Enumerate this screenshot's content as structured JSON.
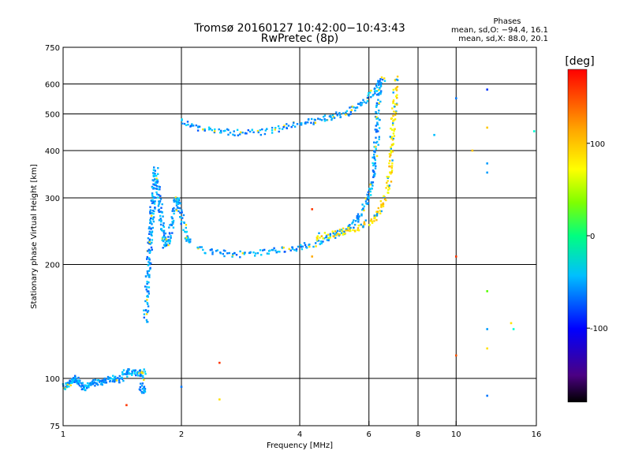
{
  "chart_data": {
    "type": "scatter",
    "title": "Tromsø 20160127 10:42:00−10:43:43",
    "subtitle": "RwPretec (8p)",
    "xlabel": "Frequency [MHz]",
    "ylabel": "Stationary phase Virtual Height [km]",
    "x_scale": "log",
    "y_scale": "log",
    "xlim": [
      1,
      16
    ],
    "ylim": [
      75,
      750
    ],
    "x_ticks": [
      1,
      2,
      4,
      6,
      8,
      10,
      16
    ],
    "x_tick_labels": [
      "1",
      "2",
      "4",
      "6",
      "8",
      "10",
      "16"
    ],
    "y_ticks": [
      75,
      100,
      200,
      300,
      400,
      500,
      600,
      750
    ],
    "y_tick_labels": [
      "75",
      "100",
      "200",
      "300",
      "400",
      "500",
      "600",
      "750"
    ],
    "grid": true,
    "phase_info": {
      "heading": "Phases",
      "line_o": "mean, sd,O: −94.4, 16.1",
      "line_x": "mean, sd,X:  88.0, 20.1"
    },
    "colorbar": {
      "label": "[deg]",
      "range": [
        -180,
        180
      ],
      "ticks": [
        100,
        0,
        -100
      ],
      "tick_labels": [
        "100",
        "0",
        "-100"
      ]
    },
    "traces": [
      {
        "name_hint": "E-trace",
        "points": [
          [
            1.0,
            95
          ],
          [
            1.03,
            96
          ],
          [
            1.06,
            98
          ],
          [
            1.08,
            100
          ],
          [
            1.1,
            97
          ],
          [
            1.13,
            94
          ],
          [
            1.16,
            96
          ],
          [
            1.2,
            97
          ],
          [
            1.25,
            98
          ],
          [
            1.3,
            99
          ],
          [
            1.35,
            100
          ],
          [
            1.4,
            99
          ],
          [
            1.45,
            104
          ],
          [
            1.5,
            104
          ],
          [
            1.55,
            103
          ],
          [
            1.6,
            104
          ],
          [
            1.58,
            93
          ],
          [
            1.64,
            92
          ]
        ],
        "phase": -100
      },
      {
        "name_hint": "F1-cusp",
        "points": [
          [
            1.62,
            140
          ],
          [
            1.63,
            160
          ],
          [
            1.64,
            180
          ],
          [
            1.65,
            200
          ],
          [
            1.66,
            220
          ],
          [
            1.67,
            240
          ],
          [
            1.68,
            260
          ],
          [
            1.69,
            280
          ],
          [
            1.7,
            300
          ],
          [
            1.71,
            330
          ],
          [
            1.72,
            360
          ],
          [
            1.74,
            320
          ],
          [
            1.76,
            290
          ],
          [
            1.78,
            260
          ],
          [
            1.8,
            240
          ],
          [
            1.82,
            225
          ],
          [
            1.86,
            230
          ],
          [
            1.9,
            260
          ],
          [
            1.93,
            290
          ],
          [
            1.96,
            300
          ],
          [
            2.0,
            270
          ],
          [
            2.05,
            240
          ],
          [
            2.1,
            225
          ]
        ],
        "phase": -100
      },
      {
        "name_hint": "F2-O",
        "points": [
          [
            2.2,
            220
          ],
          [
            2.5,
            214
          ],
          [
            2.8,
            213
          ],
          [
            3.2,
            215
          ],
          [
            3.6,
            218
          ],
          [
            4.0,
            222
          ],
          [
            4.4,
            228
          ],
          [
            4.8,
            236
          ],
          [
            5.2,
            246
          ],
          [
            5.5,
            258
          ],
          [
            5.8,
            276
          ],
          [
            6.0,
            300
          ],
          [
            6.1,
            330
          ],
          [
            6.2,
            360
          ],
          [
            6.25,
            400
          ],
          [
            6.3,
            450
          ],
          [
            6.32,
            500
          ],
          [
            6.35,
            560
          ],
          [
            6.4,
            620
          ]
        ],
        "phase": -100
      },
      {
        "name_hint": "F2-X",
        "points": [
          [
            4.4,
            236
          ],
          [
            4.8,
            240
          ],
          [
            5.2,
            245
          ],
          [
            5.6,
            250
          ],
          [
            6.0,
            258
          ],
          [
            6.3,
            270
          ],
          [
            6.5,
            290
          ],
          [
            6.7,
            320
          ],
          [
            6.8,
            360
          ],
          [
            6.85,
            400
          ],
          [
            6.9,
            450
          ],
          [
            6.95,
            500
          ],
          [
            7.0,
            560
          ],
          [
            7.05,
            630
          ]
        ],
        "phase": 100
      },
      {
        "name_hint": "F2-multi",
        "points": [
          [
            2.0,
            480
          ],
          [
            2.2,
            460
          ],
          [
            2.5,
            450
          ],
          [
            2.8,
            445
          ],
          [
            3.2,
            448
          ],
          [
            3.6,
            458
          ],
          [
            4.0,
            470
          ],
          [
            4.4,
            480
          ],
          [
            4.8,
            490
          ],
          [
            5.2,
            500
          ],
          [
            5.6,
            520
          ],
          [
            6.0,
            550
          ],
          [
            6.3,
            590
          ],
          [
            6.6,
            620
          ]
        ],
        "phase": -100
      }
    ],
    "scatter_points": [
      {
        "x": 10.0,
        "y": 550,
        "phase": -110
      },
      {
        "x": 12.0,
        "y": 580,
        "phase": -130
      },
      {
        "x": 12.0,
        "y": 460,
        "phase": 110
      },
      {
        "x": 12.0,
        "y": 370,
        "phase": -100
      },
      {
        "x": 12.0,
        "y": 350,
        "phase": -100
      },
      {
        "x": 15.8,
        "y": 450,
        "phase": -60
      },
      {
        "x": 10.0,
        "y": 210,
        "phase": 160
      },
      {
        "x": 10.0,
        "y": 115,
        "phase": 150
      },
      {
        "x": 12.0,
        "y": 170,
        "phase": 30
      },
      {
        "x": 12.0,
        "y": 135,
        "phase": -100
      },
      {
        "x": 12.0,
        "y": 120,
        "phase": 100
      },
      {
        "x": 12.0,
        "y": 90,
        "phase": -110
      },
      {
        "x": 13.8,
        "y": 140,
        "phase": 100
      },
      {
        "x": 14.0,
        "y": 135,
        "phase": -60
      },
      {
        "x": 11.0,
        "y": 400,
        "phase": 110
      },
      {
        "x": 2.5,
        "y": 110,
        "phase": 160
      },
      {
        "x": 2.5,
        "y": 88,
        "phase": 100
      },
      {
        "x": 1.45,
        "y": 85,
        "phase": 160
      },
      {
        "x": 2.0,
        "y": 95,
        "phase": -110
      },
      {
        "x": 4.3,
        "y": 280,
        "phase": 160
      },
      {
        "x": 4.3,
        "y": 210,
        "phase": 120
      },
      {
        "x": 8.8,
        "y": 440,
        "phase": -90
      }
    ]
  }
}
